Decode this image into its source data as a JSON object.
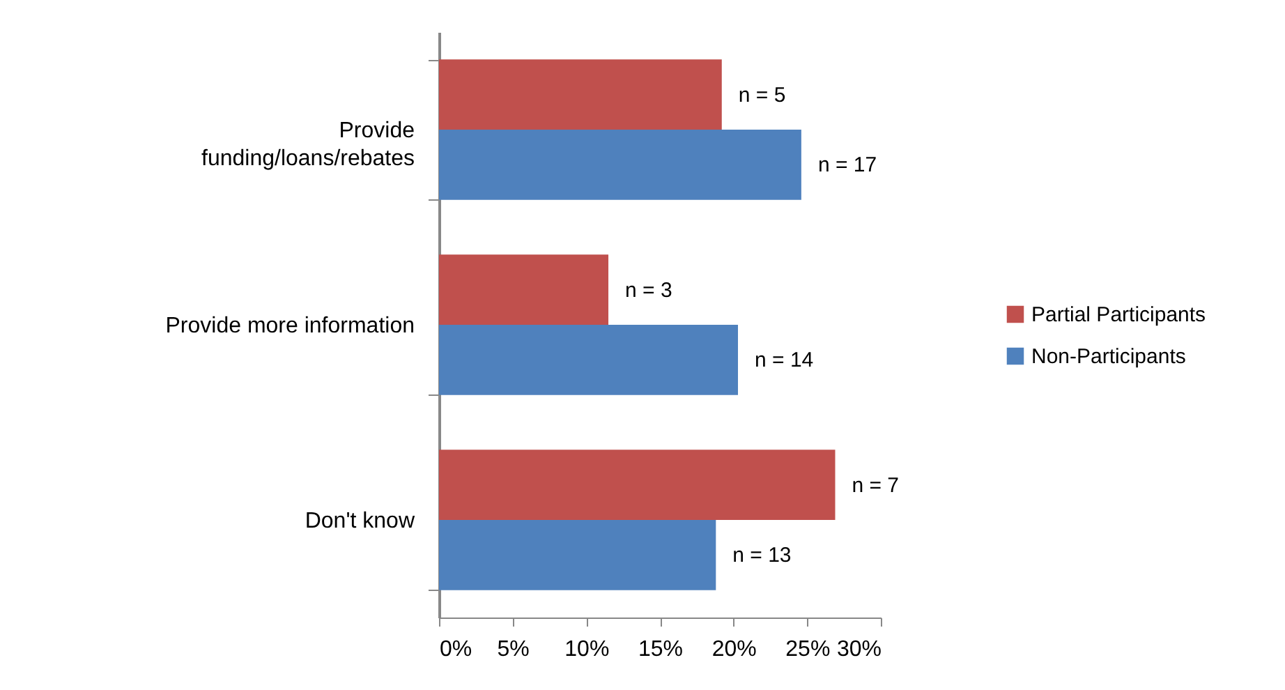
{
  "chart_data": {
    "type": "bar",
    "orientation": "horizontal",
    "categories": [
      "Provide funding/loans/rebates",
      "Provide more information",
      "Don't know"
    ],
    "series": [
      {
        "name": "Partial Participants",
        "color": "#c0504d",
        "values": [
          19.2,
          11.5,
          26.9
        ]
      },
      {
        "name": "Non-Participants",
        "color": "#4f81bd",
        "values": [
          24.6,
          20.3,
          18.8
        ]
      }
    ],
    "annotations": [
      "n = 5",
      "n = 17",
      "n = 3",
      "n = 14",
      "n = 7",
      "n = 13"
    ],
    "xlim": [
      0,
      30
    ],
    "xticks": [
      {
        "value": 0,
        "label": "0%"
      },
      {
        "value": 5,
        "label": "5%"
      },
      {
        "value": 10,
        "label": "10%"
      },
      {
        "value": 15,
        "label": "15%"
      },
      {
        "value": 20,
        "label": "20%"
      },
      {
        "value": 25,
        "label": "25%"
      },
      {
        "value": 30,
        "label": "30%"
      }
    ],
    "legend": "right",
    "grid": false
  }
}
